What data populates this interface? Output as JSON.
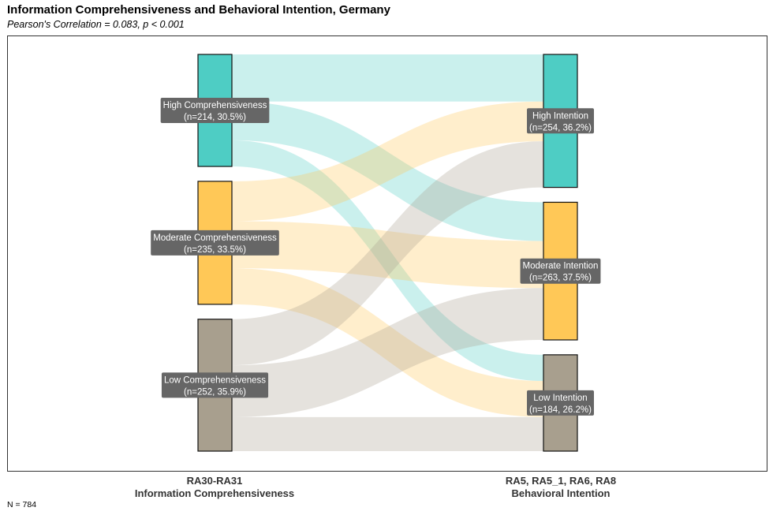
{
  "title": "Information Comprehensiveness and Behavioral Intention, Germany",
  "subtitle": "Pearson's Correlation = 0.083, p < 0.001",
  "footnote": "N = 784",
  "axis_left": {
    "code": "RA30-RA31",
    "name": "Information Comprehensiveness"
  },
  "axis_right": {
    "code": "RA5, RA5_1, RA6, RA8",
    "name": "Behavioral Intention"
  },
  "chart_data": {
    "type": "sankey",
    "title": "Information Comprehensiveness and Behavioral Intention, Germany",
    "subtitle": "Pearson's Correlation = 0.083, p < 0.001",
    "total_n": 784,
    "left_nodes": [
      {
        "id": "hc",
        "name": "High Comprehensiveness",
        "label": "(n=214, 30.5%)",
        "n": 214,
        "pct": 30.5,
        "color": "#4ECDC4"
      },
      {
        "id": "mc",
        "name": "Moderate Comprehensiveness",
        "label": "(n=235, 33.5%)",
        "n": 235,
        "pct": 33.5,
        "color": "#FFC857"
      },
      {
        "id": "lc",
        "name": "Low Comprehensiveness",
        "label": "(n=252, 35.9%)",
        "n": 252,
        "pct": 35.9,
        "color": "#A89F8E"
      }
    ],
    "right_nodes": [
      {
        "id": "hi",
        "name": "High Intention",
        "label": "(n=254, 36.2%)",
        "n": 254,
        "pct": 36.2,
        "color": "#4ECDC4"
      },
      {
        "id": "mi",
        "name": "Moderate Intention",
        "label": "(n=263, 37.5%)",
        "n": 263,
        "pct": 37.5,
        "color": "#FFC857"
      },
      {
        "id": "li",
        "name": "Low Intention",
        "label": "(n=184, 26.2%)",
        "n": 184,
        "pct": 26.2,
        "color": "#A89F8E"
      }
    ],
    "flows": [
      {
        "from": "hc",
        "to": "hi",
        "value": 90
      },
      {
        "from": "hc",
        "to": "mi",
        "value": 74
      },
      {
        "from": "hc",
        "to": "li",
        "value": 50
      },
      {
        "from": "mc",
        "to": "hi",
        "value": 76
      },
      {
        "from": "mc",
        "to": "mi",
        "value": 90
      },
      {
        "from": "mc",
        "to": "li",
        "value": 69
      },
      {
        "from": "lc",
        "to": "hi",
        "value": 88
      },
      {
        "from": "lc",
        "to": "mi",
        "value": 99
      },
      {
        "from": "lc",
        "to": "li",
        "value": 65
      }
    ]
  }
}
